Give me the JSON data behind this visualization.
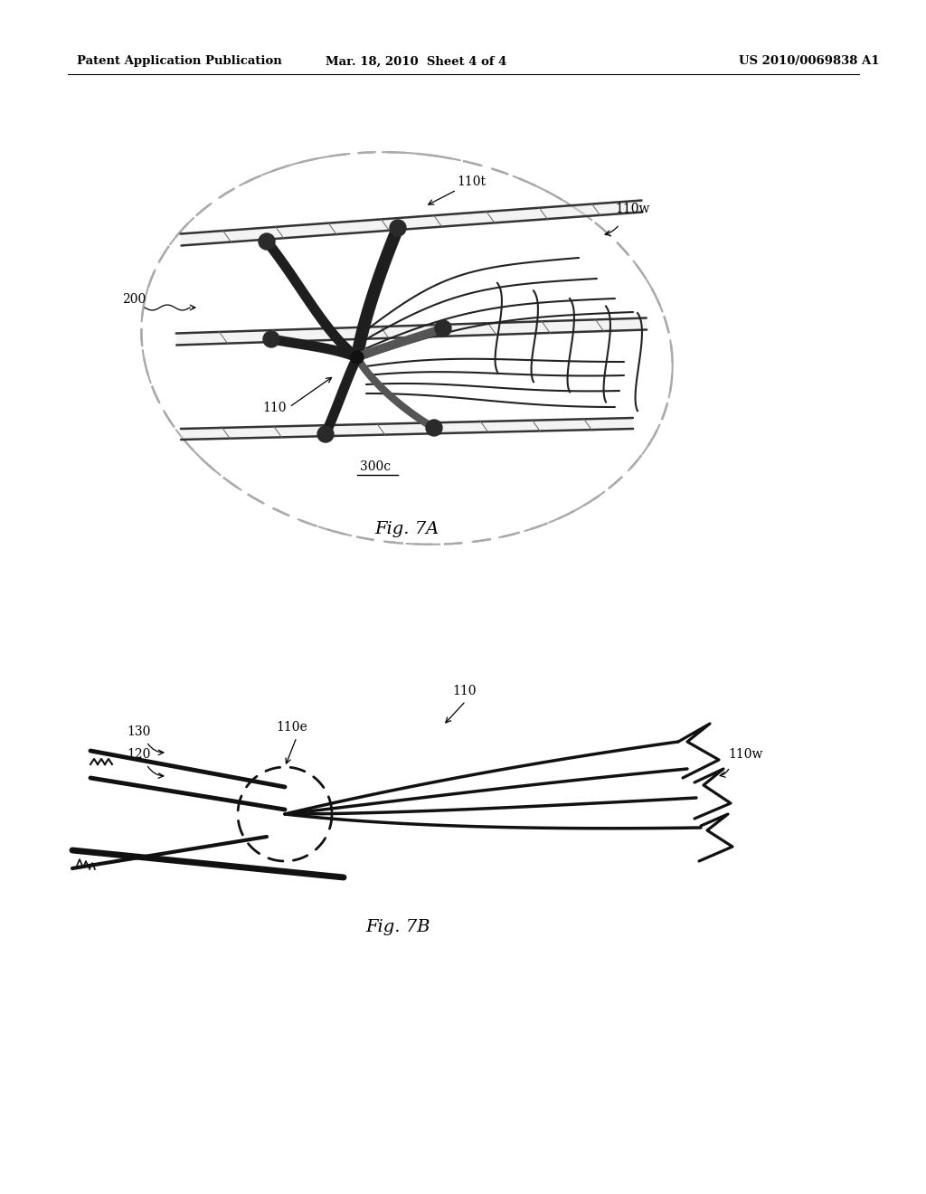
{
  "bg_color": "#ffffff",
  "header_left": "Patent Application Publication",
  "header_mid": "Mar. 18, 2010  Sheet 4 of 4",
  "header_right": "US 2010/0069838 A1",
  "fig7a_label": "Fig. 7A",
  "fig7b_label": "Fig. 7B"
}
